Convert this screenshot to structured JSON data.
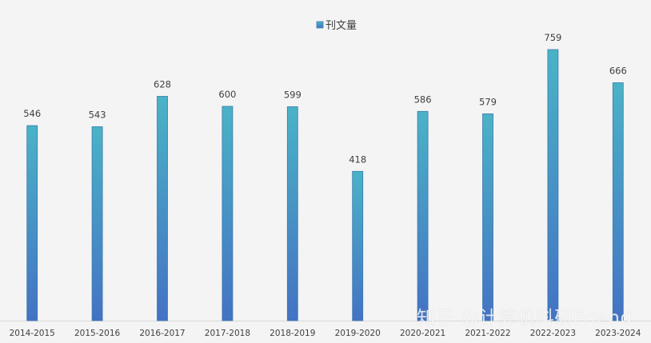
{
  "chart_data": {
    "type": "bar",
    "categories": [
      "2014-2015",
      "2015-2016",
      "2016-2017",
      "2017-2018",
      "2018-2019",
      "2019-2020",
      "2020-2021",
      "2021-2022",
      "2022-2023",
      "2023-2024"
    ],
    "series": [
      {
        "name": "刊文量",
        "values": [
          546,
          543,
          628,
          600,
          599,
          418,
          586,
          579,
          759,
          666
        ]
      }
    ],
    "title": "",
    "xlabel": "",
    "ylabel": "",
    "ylim": [
      0,
      800
    ],
    "grid": false,
    "legend": "top-center",
    "data_labels": true
  },
  "colors": {
    "bar_top": "#4ab3c6",
    "bar_bottom": "#4472c4",
    "background": "#f4f4f4",
    "text": "#404040",
    "axis": "#d9d9d9"
  },
  "watermark": "知乎 @计算机科研Friend"
}
